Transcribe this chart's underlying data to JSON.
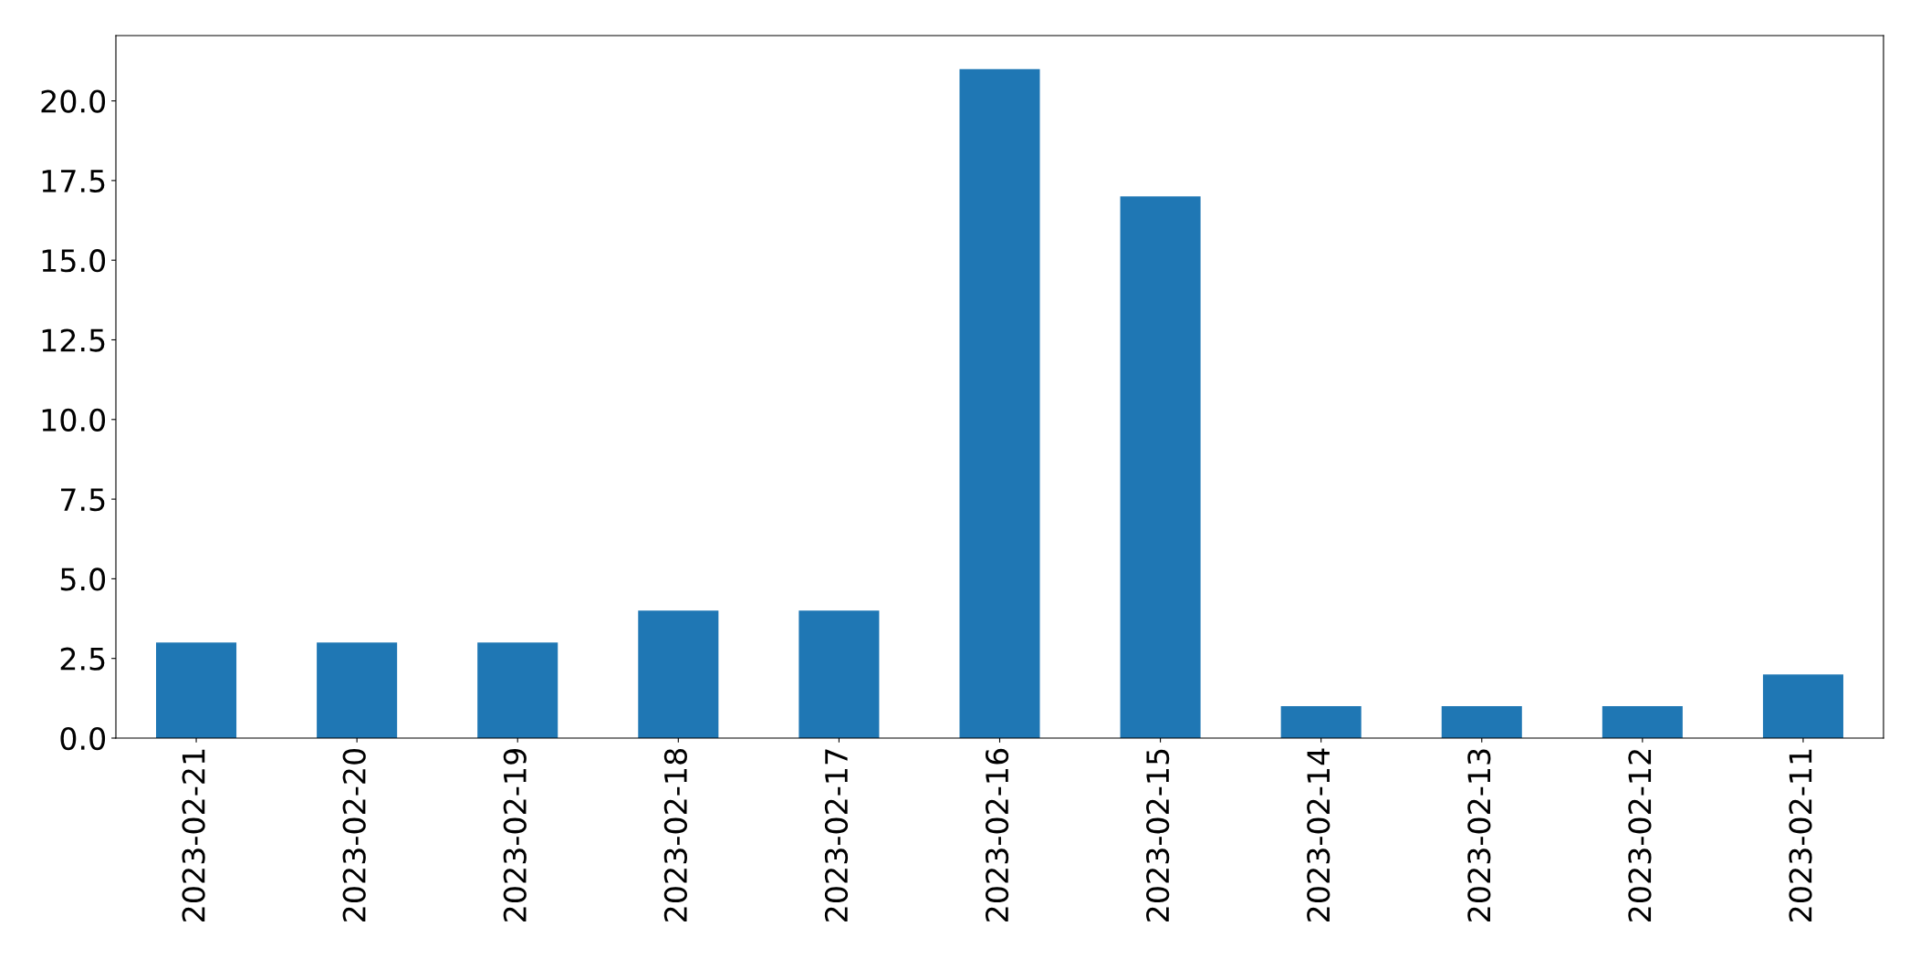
{
  "chart_data": {
    "type": "bar",
    "categories": [
      "2023-02-21",
      "2023-02-20",
      "2023-02-19",
      "2023-02-18",
      "2023-02-17",
      "2023-02-16",
      "2023-02-15",
      "2023-02-14",
      "2023-02-13",
      "2023-02-12",
      "2023-02-11"
    ],
    "values": [
      3,
      3,
      3,
      4,
      4,
      21,
      17,
      1,
      1,
      1,
      2
    ],
    "color": "#1f77b4",
    "ylim": [
      0,
      22.05
    ],
    "yticks": [
      {
        "value": 0,
        "label": "0.0"
      },
      {
        "value": 2.5,
        "label": "2.5"
      },
      {
        "value": 5,
        "label": "5.0"
      },
      {
        "value": 7.5,
        "label": "7.5"
      },
      {
        "value": 10,
        "label": "10.0"
      },
      {
        "value": 12.5,
        "label": "12.5"
      },
      {
        "value": 15,
        "label": "15.0"
      },
      {
        "value": 17.5,
        "label": "17.5"
      },
      {
        "value": 20,
        "label": "20.0"
      }
    ],
    "grid": false
  }
}
